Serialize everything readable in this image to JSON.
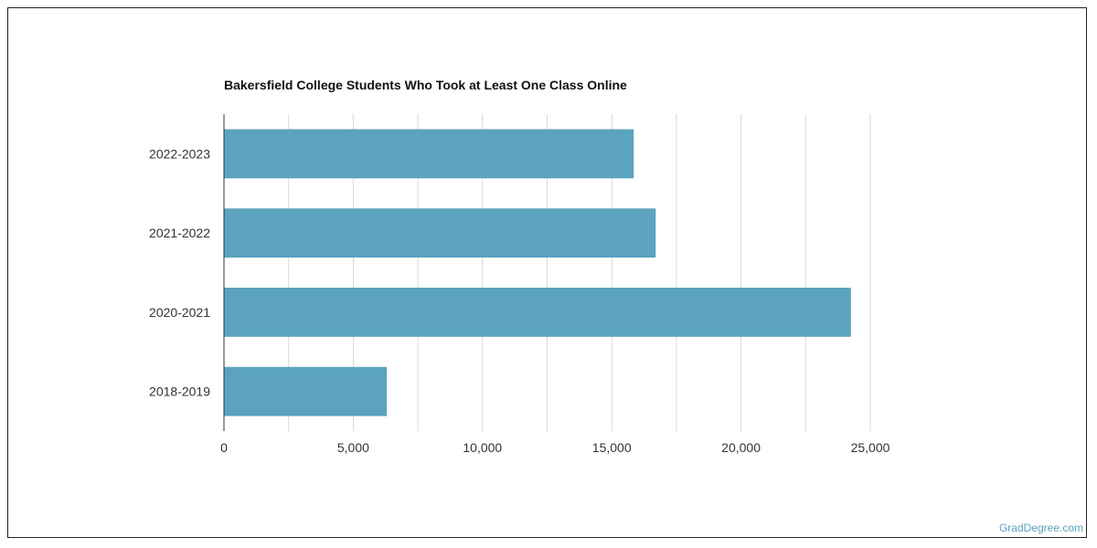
{
  "chart_data": {
    "type": "bar",
    "orientation": "horizontal",
    "title": "Bakersfield College Students Who Took at Least One Class Online",
    "categories": [
      "2022-2023",
      "2021-2022",
      "2020-2021",
      "2018-2019"
    ],
    "values": [
      15850,
      16700,
      24250,
      6300
    ],
    "xlim": [
      0,
      25000
    ],
    "xticks": [
      0,
      5000,
      10000,
      15000,
      20000,
      25000
    ],
    "xtick_labels": [
      "0",
      "5,000",
      "10,000",
      "15,000",
      "20,000",
      "25,000"
    ],
    "grid": true,
    "bar_color": "#5ba3bf"
  },
  "watermark": "GradDegree.com"
}
